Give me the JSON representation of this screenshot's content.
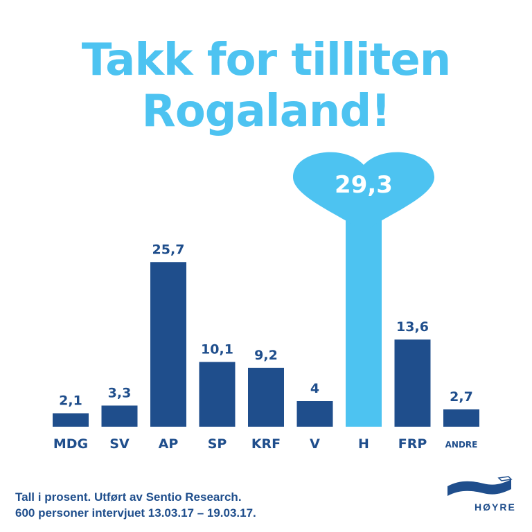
{
  "headline": {
    "line1": "Takk for tilliten",
    "line2": "Rogaland!"
  },
  "colors": {
    "accent": "#4dc3f1",
    "bar": "#1f4e8c",
    "text": "#1f4e8c",
    "background": "#ffffff"
  },
  "chart_data": {
    "type": "bar",
    "categories": [
      "MDG",
      "SV",
      "AP",
      "SP",
      "KRF",
      "V",
      "H",
      "FRP",
      "ANDRE"
    ],
    "values": [
      2.1,
      3.3,
      25.7,
      10.1,
      9.2,
      4,
      29.3,
      13.6,
      2.7
    ],
    "value_labels": [
      "2,1",
      "3,3",
      "25,7",
      "10,1",
      "9,2",
      "4",
      "29,3",
      "13,6",
      "2,7"
    ],
    "highlight": "H",
    "highlight_marker": "heart",
    "ylim": [
      0,
      29.3
    ],
    "grid": false,
    "legend": "none"
  },
  "footnote": {
    "line1": "Tall i prosent. Utført av Sentio Research.",
    "line2": "600 personer intervjuet 13.03.17 – 19.03.17."
  },
  "logo": {
    "icon": "flag-icon",
    "text": "HØYRE"
  }
}
